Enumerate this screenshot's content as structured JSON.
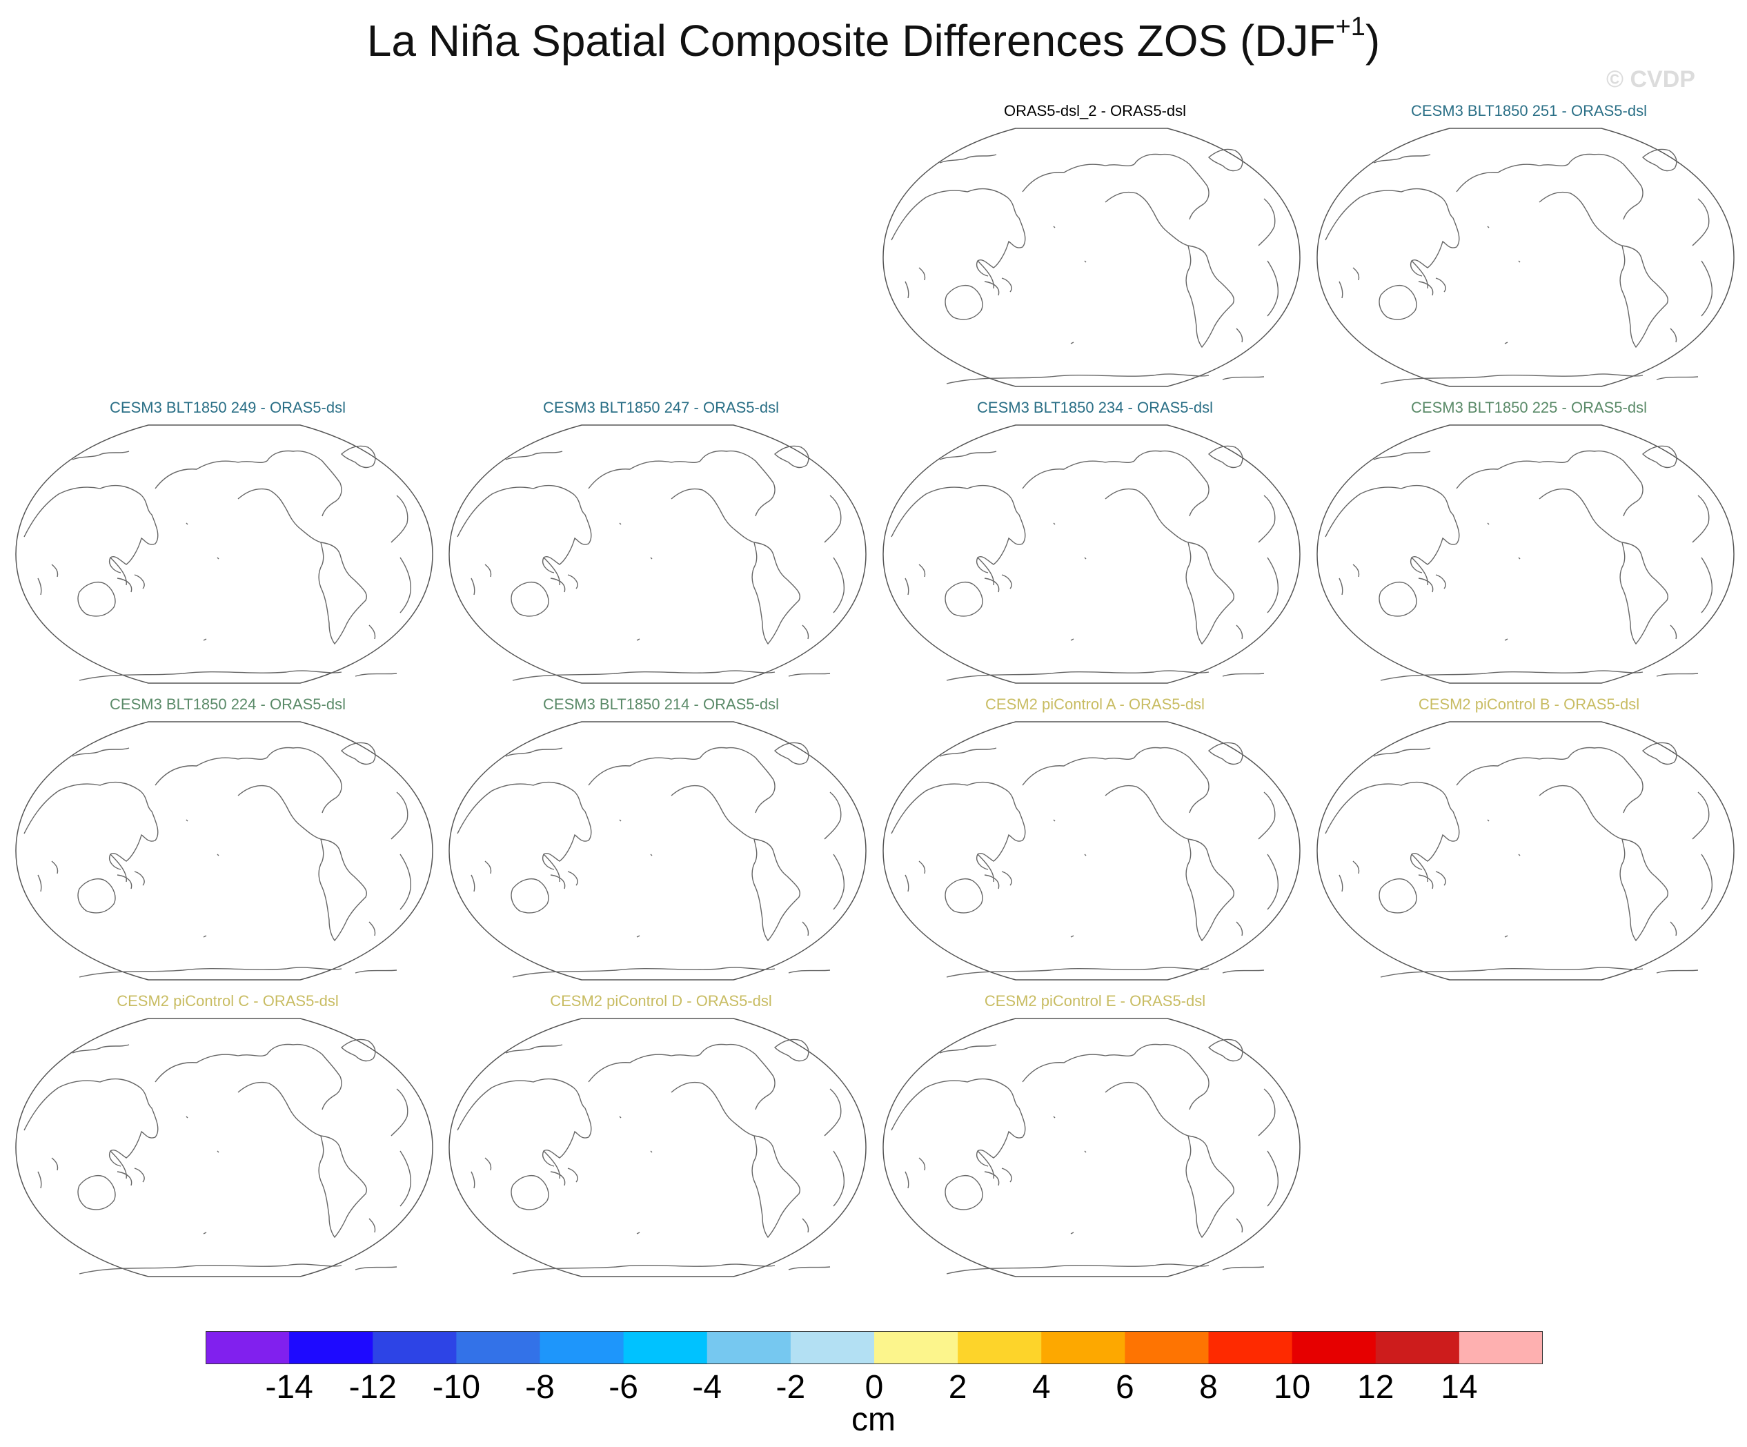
{
  "title": {
    "main": "La Niña Spatial Composite Differences ZOS (DJF",
    "superscript": "+1",
    "suffix": ")"
  },
  "watermark": "© CVDP",
  "panels": [
    {
      "label": "ORAS5-dsl_2 - ORAS5-dsl",
      "color": "#000000"
    },
    {
      "label": "CESM3 BLT1850 251 - ORAS5-dsl",
      "color": "#2a6f86"
    },
    {
      "label": "CESM3 BLT1850 249 - ORAS5-dsl",
      "color": "#2a6f86"
    },
    {
      "label": "CESM3 BLT1850 247 - ORAS5-dsl",
      "color": "#2a6f86"
    },
    {
      "label": "CESM3 BLT1850 234 - ORAS5-dsl",
      "color": "#2a6f86"
    },
    {
      "label": "CESM3 BLT1850 225 - ORAS5-dsl",
      "color": "#5a8a68"
    },
    {
      "label": "CESM3 BLT1850 224 - ORAS5-dsl",
      "color": "#5a8a68"
    },
    {
      "label": "CESM3 BLT1850 214 - ORAS5-dsl",
      "color": "#5a8a68"
    },
    {
      "label": "CESM2 piControl A - ORAS5-dsl",
      "color": "#c8bc62"
    },
    {
      "label": "CESM2 piControl B - ORAS5-dsl",
      "color": "#c8bc62"
    },
    {
      "label": "CESM2 piControl C - ORAS5-dsl",
      "color": "#c8bc62"
    },
    {
      "label": "CESM2 piControl D - ORAS5-dsl",
      "color": "#c8bc62"
    },
    {
      "label": "CESM2 piControl E - ORAS5-dsl",
      "color": "#c8bc62"
    }
  ],
  "colorbar": {
    "units": "cm",
    "colors": [
      "#8120ee",
      "#1e0aff",
      "#2d44e6",
      "#3372e8",
      "#1e96fb",
      "#00c2ff",
      "#76c8f0",
      "#b3e0f3",
      "#fcf58c",
      "#fdd42a",
      "#fda800",
      "#fe7402",
      "#fe2a00",
      "#e60000",
      "#cd1c1c",
      "#feb0b0"
    ],
    "ticks": [
      "-14",
      "-12",
      "-10",
      "-8",
      "-6",
      "-4",
      "-2",
      "0",
      "2",
      "4",
      "6",
      "8",
      "10",
      "12",
      "14"
    ]
  }
}
